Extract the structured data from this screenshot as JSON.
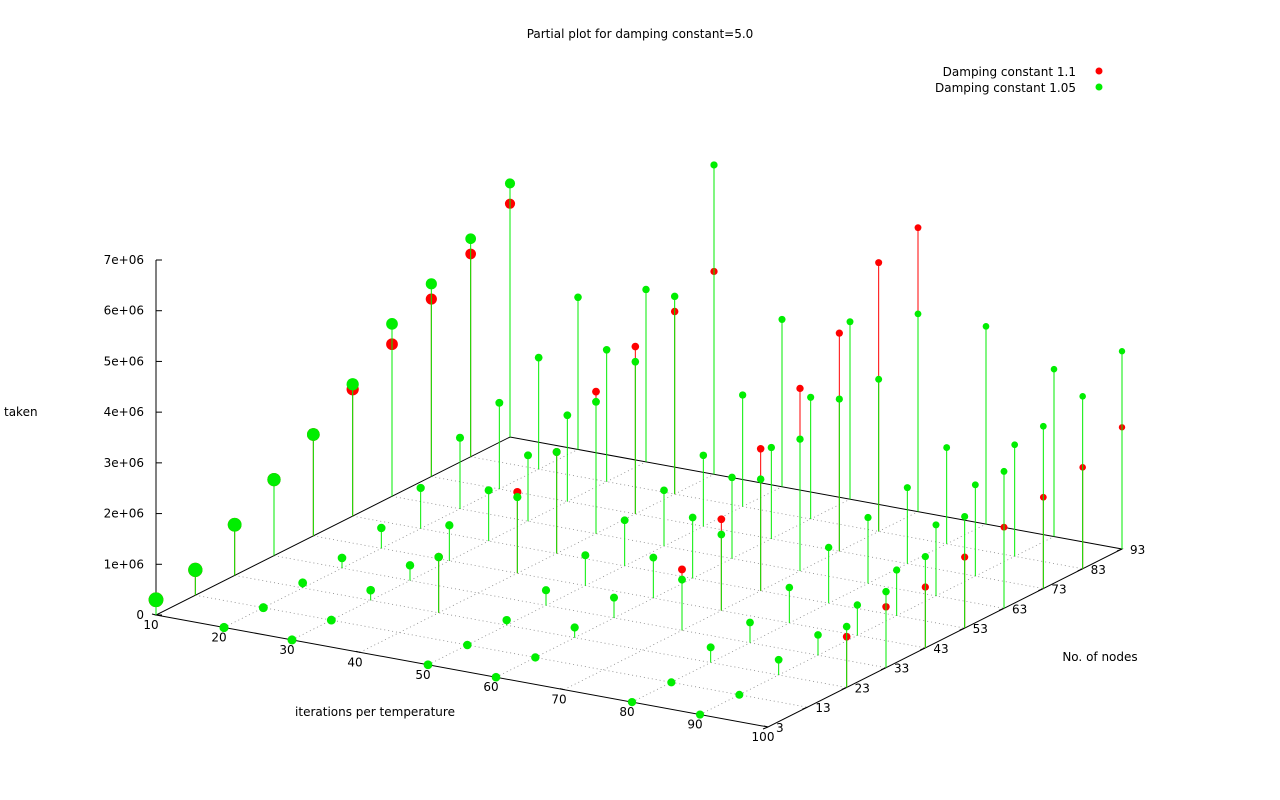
{
  "chart_data": {
    "type": "scatter",
    "title": "Partial plot for damping constant=5.0",
    "xlabel": "iterations per temperature",
    "ylabel": "No. of nodes",
    "zlabel": "taken",
    "x_ticks": [
      "10",
      "20",
      "30",
      "40",
      "50",
      "60",
      "70",
      "80",
      "90",
      "100"
    ],
    "y_ticks": [
      "3",
      "13",
      "23",
      "33",
      "43",
      "53",
      "63",
      "73",
      "83",
      "93"
    ],
    "z_ticks": [
      "0",
      "1e+06",
      "2e+06",
      "3e+06",
      "4e+06",
      "5e+06",
      "6e+06",
      "7e+06"
    ],
    "zlim": [
      0,
      7000000
    ],
    "grid": true,
    "legend_position": "top-right",
    "series": [
      {
        "name": "Damping constant 1.1",
        "color": "#ff0000",
        "points": [
          [
            10,
            3,
            300000
          ],
          [
            10,
            13,
            500000
          ],
          [
            10,
            23,
            1000000
          ],
          [
            10,
            33,
            1500000
          ],
          [
            10,
            43,
            2000000
          ],
          [
            10,
            53,
            2500000
          ],
          [
            10,
            63,
            3000000
          ],
          [
            10,
            73,
            3500000
          ],
          [
            10,
            83,
            4000000
          ],
          [
            10,
            93,
            4600000
          ],
          [
            40,
            23,
            1100000
          ],
          [
            40,
            43,
            1600000
          ],
          [
            40,
            53,
            2000000
          ],
          [
            40,
            63,
            2800000
          ],
          [
            40,
            73,
            3300000
          ],
          [
            40,
            83,
            3600000
          ],
          [
            40,
            93,
            4000000
          ],
          [
            70,
            33,
            1200000
          ],
          [
            70,
            43,
            1800000
          ],
          [
            70,
            53,
            2800000
          ],
          [
            70,
            63,
            3600000
          ],
          [
            70,
            73,
            4300000
          ],
          [
            70,
            83,
            5300000
          ],
          [
            70,
            93,
            5600000
          ],
          [
            100,
            23,
            1000000
          ],
          [
            100,
            33,
            1200000
          ],
          [
            100,
            43,
            1200000
          ],
          [
            100,
            53,
            1400000
          ],
          [
            100,
            63,
            1600000
          ],
          [
            100,
            73,
            1800000
          ],
          [
            100,
            83,
            2000000
          ],
          [
            100,
            93,
            2400000
          ]
        ]
      },
      {
        "name": "Damping constant 1.05",
        "color": "#00ee00",
        "points": [
          [
            10,
            3,
            300000
          ],
          [
            10,
            13,
            500000
          ],
          [
            10,
            23,
            1000000
          ],
          [
            10,
            33,
            1500000
          ],
          [
            10,
            43,
            2000000
          ],
          [
            10,
            53,
            2600000
          ],
          [
            10,
            63,
            3400000
          ],
          [
            10,
            73,
            3800000
          ],
          [
            10,
            83,
            4300000
          ],
          [
            10,
            93,
            5000000
          ],
          [
            40,
            23,
            1100000
          ],
          [
            40,
            43,
            1500000
          ],
          [
            40,
            53,
            2000000
          ],
          [
            40,
            63,
            2600000
          ],
          [
            40,
            73,
            3000000
          ],
          [
            40,
            83,
            3900000
          ],
          [
            40,
            93,
            6100000
          ],
          [
            70,
            33,
            1000000
          ],
          [
            70,
            43,
            1500000
          ],
          [
            70,
            53,
            2200000
          ],
          [
            70,
            63,
            2600000
          ],
          [
            70,
            73,
            3000000
          ],
          [
            70,
            83,
            3000000
          ],
          [
            70,
            93,
            3900000
          ],
          [
            100,
            23,
            1200000
          ],
          [
            100,
            33,
            1500000
          ],
          [
            100,
            43,
            1800000
          ],
          [
            100,
            53,
            2200000
          ],
          [
            100,
            63,
            2700000
          ],
          [
            100,
            73,
            3200000
          ],
          [
            100,
            83,
            3400000
          ],
          [
            100,
            93,
            3900000
          ]
        ]
      },
      {
        "name": "",
        "color": "#00ee00",
        "points": [
          [
            20,
            3,
            0
          ],
          [
            20,
            13,
            0
          ],
          [
            20,
            23,
            100000
          ],
          [
            20,
            33,
            200000
          ],
          [
            20,
            43,
            400000
          ],
          [
            20,
            53,
            800000
          ],
          [
            20,
            63,
            1400000
          ],
          [
            20,
            73,
            1700000
          ],
          [
            20,
            83,
            2200000
          ],
          [
            20,
            93,
            3000000
          ],
          [
            30,
            3,
            0
          ],
          [
            30,
            13,
            0
          ],
          [
            30,
            23,
            200000
          ],
          [
            30,
            33,
            300000
          ],
          [
            30,
            43,
            700000
          ],
          [
            30,
            53,
            1000000
          ],
          [
            30,
            63,
            1300000
          ],
          [
            30,
            73,
            1700000
          ],
          [
            30,
            83,
            2600000
          ],
          [
            30,
            93,
            3400000
          ],
          [
            50,
            3,
            0
          ],
          [
            50,
            13,
            0
          ],
          [
            50,
            23,
            100000
          ],
          [
            50,
            33,
            300000
          ],
          [
            50,
            43,
            600000
          ],
          [
            50,
            53,
            900000
          ],
          [
            50,
            63,
            1100000
          ],
          [
            50,
            73,
            1400000
          ],
          [
            50,
            83,
            2200000
          ],
          [
            50,
            93,
            3300000
          ],
          [
            60,
            3,
            0
          ],
          [
            60,
            13,
            0
          ],
          [
            60,
            23,
            200000
          ],
          [
            60,
            33,
            400000
          ],
          [
            60,
            43,
            800000
          ],
          [
            60,
            53,
            1200000
          ],
          [
            60,
            63,
            1600000
          ],
          [
            60,
            73,
            1800000
          ],
          [
            60,
            83,
            2400000
          ],
          [
            60,
            93,
            3500000
          ],
          [
            80,
            3,
            0
          ],
          [
            80,
            13,
            0
          ],
          [
            80,
            23,
            300000
          ],
          [
            80,
            33,
            400000
          ],
          [
            80,
            43,
            700000
          ],
          [
            80,
            53,
            1100000
          ],
          [
            80,
            63,
            1300000
          ],
          [
            80,
            73,
            1500000
          ],
          [
            80,
            83,
            1900000
          ],
          [
            80,
            93,
            3900000
          ],
          [
            90,
            3,
            0
          ],
          [
            90,
            13,
            0
          ],
          [
            90,
            23,
            300000
          ],
          [
            90,
            33,
            400000
          ],
          [
            90,
            43,
            600000
          ],
          [
            90,
            53,
            900000
          ],
          [
            90,
            63,
            1400000
          ],
          [
            90,
            73,
            1800000
          ],
          [
            90,
            83,
            2200000
          ],
          [
            90,
            93,
            3300000
          ]
        ]
      }
    ]
  }
}
